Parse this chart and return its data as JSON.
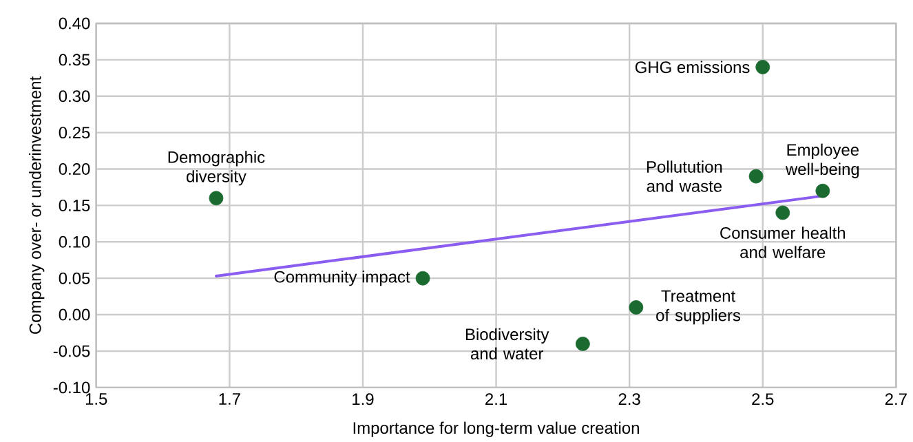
{
  "chart_data": {
    "type": "scatter",
    "xlabel": "Importance for long-term value creation",
    "ylabel": "Company over- or underinvestment",
    "xlim": [
      1.5,
      2.7
    ],
    "ylim": [
      -0.1,
      0.4
    ],
    "xticks": [
      1.5,
      1.7,
      1.9,
      2.1,
      2.3,
      2.5,
      2.7
    ],
    "yticks": [
      {
        "value": -0.1,
        "label": "-0.10"
      },
      {
        "value": -0.05,
        "label": "-0.05"
      },
      {
        "value": 0,
        "label": "0.00"
      },
      {
        "value": 0.05,
        "label": "0.05"
      },
      {
        "value": 0.1,
        "label": "0.10"
      },
      {
        "value": 0.15,
        "label": "0.15"
      },
      {
        "value": 0.2,
        "label": "0.20"
      },
      {
        "value": 0.25,
        "label": "0.25"
      },
      {
        "value": 0.3,
        "label": "0.30"
      },
      {
        "value": 0.35,
        "label": "0.35"
      },
      {
        "value": 0.4,
        "label": "0.40"
      }
    ],
    "grid": true,
    "marker": "circle",
    "series": [
      {
        "color": "#1b6b30",
        "x": [
          1.68,
          1.99,
          2.23,
          2.31,
          2.49,
          2.5,
          2.53,
          2.59
        ],
        "values": [
          0.16,
          0.05,
          -0.04,
          0.01,
          0.19,
          0.34,
          0.14,
          0.17
        ]
      },
      {
        "type": "line",
        "marker": "none",
        "color": "#8b5cf0",
        "x": [
          1.68,
          2.59
        ],
        "values": [
          0.053,
          0.163
        ]
      }
    ],
    "annotations": [
      {
        "text": "Demographic diversity",
        "x": 1.68,
        "y": 0.16
      },
      {
        "text": "Community impact",
        "x": 1.99,
        "y": 0.05
      },
      {
        "text": "Biodiversity and water",
        "x": 2.23,
        "y": -0.04
      },
      {
        "text": "Treatment of suppliers",
        "x": 2.31,
        "y": 0.01
      },
      {
        "text": "Pollutution and waste",
        "x": 2.49,
        "y": 0.19
      },
      {
        "text": "GHG emissions",
        "x": 2.5,
        "y": 0.34
      },
      {
        "text": "Consumer health and welfare",
        "x": 2.53,
        "y": 0.14
      },
      {
        "text": "Employee well-being",
        "x": 2.59,
        "y": 0.17
      }
    ]
  }
}
